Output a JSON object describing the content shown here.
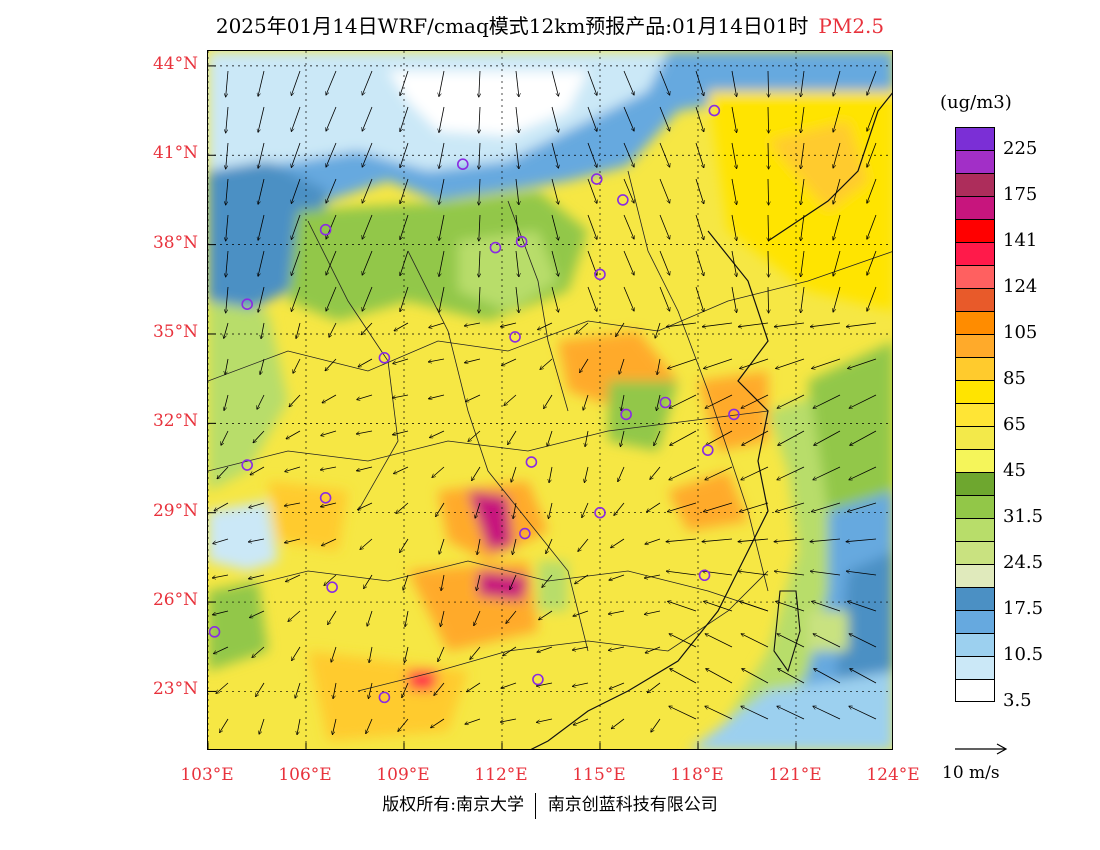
{
  "title": {
    "main": "2025年01月14日WRF/cmaq模式12km预报产品:01月14日01时",
    "pollutant": "PM2.5"
  },
  "map": {
    "lat_labels": [
      "44°N",
      "41°N",
      "38°N",
      "35°N",
      "32°N",
      "29°N",
      "26°N",
      "23°N"
    ],
    "lon_labels": [
      "103°E",
      "106°E",
      "109°E",
      "112°E",
      "115°E",
      "118°E",
      "121°E",
      "124°E"
    ],
    "lat_degrees": [
      44,
      41,
      38,
      35,
      32,
      29,
      26,
      23
    ],
    "lon_degrees": [
      103,
      106,
      109,
      112,
      115,
      118,
      121,
      124
    ],
    "extent": {
      "lon_min": 103,
      "lon_max": 124,
      "lat_min": 21,
      "lat_max": 44.5
    },
    "cities": [
      {
        "lon": 118.5,
        "lat": 42.5
      },
      {
        "lon": 110.8,
        "lat": 40.7
      },
      {
        "lon": 114.9,
        "lat": 40.2
      },
      {
        "lon": 115.7,
        "lat": 39.5
      },
      {
        "lon": 106.6,
        "lat": 38.5
      },
      {
        "lon": 111.8,
        "lat": 37.9
      },
      {
        "lon": 112.6,
        "lat": 38.1
      },
      {
        "lon": 115.0,
        "lat": 37.0
      },
      {
        "lon": 104.2,
        "lat": 36.0
      },
      {
        "lon": 112.4,
        "lat": 34.9
      },
      {
        "lon": 108.4,
        "lat": 34.2
      },
      {
        "lon": 115.8,
        "lat": 32.3
      },
      {
        "lon": 117.0,
        "lat": 32.7
      },
      {
        "lon": 119.1,
        "lat": 32.3
      },
      {
        "lon": 118.3,
        "lat": 31.1
      },
      {
        "lon": 104.2,
        "lat": 30.6
      },
      {
        "lon": 112.9,
        "lat": 30.7
      },
      {
        "lon": 106.6,
        "lat": 29.5
      },
      {
        "lon": 115.0,
        "lat": 29.0
      },
      {
        "lon": 112.7,
        "lat": 28.3
      },
      {
        "lon": 106.8,
        "lat": 26.5
      },
      {
        "lon": 118.2,
        "lat": 26.9
      },
      {
        "lon": 103.2,
        "lat": 25.0
      },
      {
        "lon": 113.1,
        "lat": 23.4
      },
      {
        "lon": 108.4,
        "lat": 22.8
      }
    ]
  },
  "colorbar": {
    "unit": "(ug/m3)",
    "labels": [
      "225",
      "175",
      "141",
      "124",
      "105",
      "85",
      "65",
      "45",
      "31.5",
      "24.5",
      "17.5",
      "10.5",
      "3.5"
    ],
    "colors": [
      "#7b2fd6",
      "#a22fc7",
      "#ad2d5b",
      "#c7157d",
      "#ff0000",
      "#ff1a4a",
      "#ff6060",
      "#e85a2a",
      "#ff8c00",
      "#ffaa2a",
      "#ffcb2d",
      "#ffe400",
      "#ffe535",
      "#f3e94a",
      "#f5f55a",
      "#6ea72f",
      "#92c748",
      "#b8dd6a",
      "#c9e280",
      "#e0eabc",
      "#4b90c4",
      "#66a9df",
      "#9cd0ef",
      "#cbe8f7",
      "#ffffff"
    ]
  },
  "wind_reference": "10 m/s",
  "footer": {
    "left": "版权所有:南京大学",
    "right": "南京创蓝科技有限公司"
  }
}
